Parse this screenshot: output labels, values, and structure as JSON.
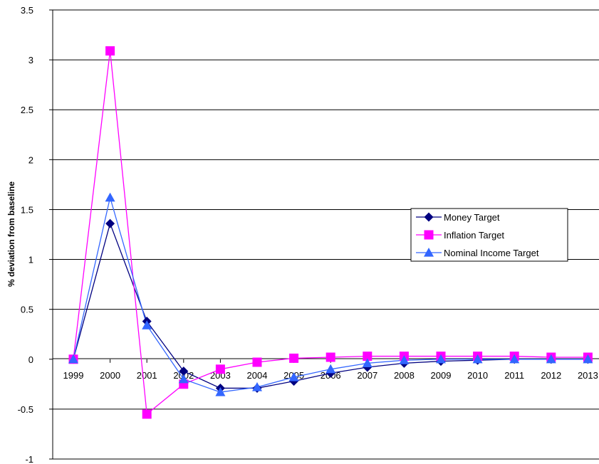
{
  "chart_data": {
    "type": "line",
    "title": "",
    "xlabel": "",
    "ylabel": "% deviation from baseline",
    "ylim": [
      -1,
      3.5
    ],
    "yticks": [
      3.5,
      3,
      2.5,
      2,
      1.5,
      1,
      0.5,
      0,
      -0.5,
      -1
    ],
    "ytick_labels": [
      "3.5",
      "3",
      "2.5",
      "2",
      "1.5",
      "1",
      "0.5",
      "0",
      "-0.5",
      "-1"
    ],
    "categories": [
      "1999",
      "2000",
      "2001",
      "2002",
      "2003",
      "2004",
      "2005",
      "2006",
      "2007",
      "2008",
      "2009",
      "2010",
      "2011",
      "2012",
      "2013"
    ],
    "grid": "horizontal",
    "legend_position": "right",
    "series": [
      {
        "name": "Money Target",
        "color": "#000080",
        "marker": "diamond",
        "values": [
          0,
          1.36,
          0.38,
          -0.12,
          -0.29,
          -0.29,
          -0.22,
          -0.14,
          -0.08,
          -0.04,
          -0.02,
          -0.01,
          0,
          0,
          0
        ]
      },
      {
        "name": "Inflation Target",
        "color": "#ff00ff",
        "marker": "square",
        "values": [
          0,
          3.09,
          -0.55,
          -0.25,
          -0.1,
          -0.03,
          0.01,
          0.02,
          0.03,
          0.03,
          0.03,
          0.03,
          0.03,
          0.02,
          0.02
        ]
      },
      {
        "name": "Nominal Income Target",
        "color": "#3366ff",
        "marker": "triangle",
        "values": [
          0,
          1.62,
          0.34,
          -0.2,
          -0.33,
          -0.28,
          -0.18,
          -0.1,
          -0.04,
          -0.01,
          0,
          0,
          0,
          0,
          0
        ]
      }
    ]
  }
}
